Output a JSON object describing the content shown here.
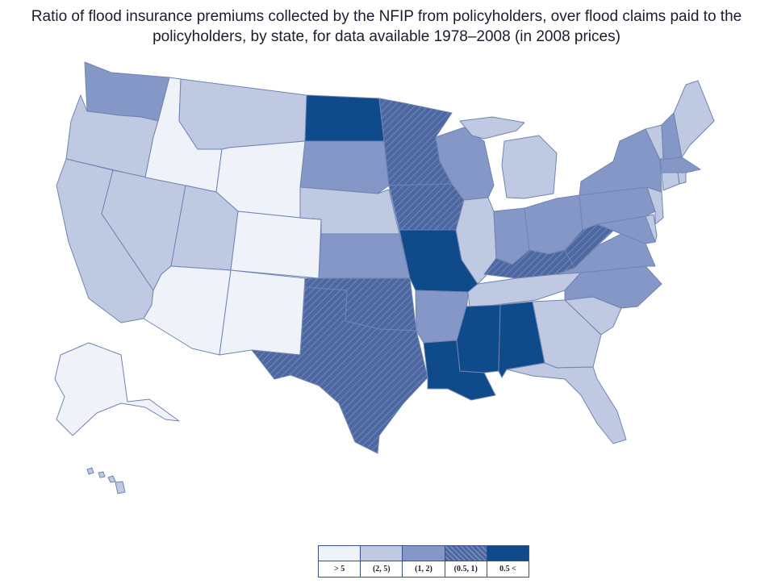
{
  "title": "Ratio of flood insurance premiums collected by the NFIP from policyholders, over flood claims paid to the policyholders, by state, for data available 1978–2008 (in 2008 prices)",
  "colors": {
    "gt5": "#eff2f8",
    "2to5": "#bfc9e2",
    "1to2": "#8497c6",
    "0_5to1": "#4d68a0",
    "0_5_or_less": "#0f4a8a",
    "border": "#6f84b3"
  },
  "legend": [
    {
      "key": "gt5",
      "label": "> 5",
      "pattern": "solid"
    },
    {
      "key": "2to5",
      "label": "(2, 5)",
      "pattern": "solid"
    },
    {
      "key": "1to2",
      "label": "(1, 2)",
      "pattern": "solid"
    },
    {
      "key": "0_5to1",
      "label": "(0.5, 1)",
      "pattern": "hatched"
    },
    {
      "key": "0_5_or_less",
      "label": "0.5 <",
      "pattern": "solid"
    }
  ],
  "states": {
    "WA": "1to2",
    "OR": "2to5",
    "CA": "2to5",
    "NV": "2to5",
    "ID": "gt5",
    "MT": "2to5",
    "WY": "gt5",
    "UT": "2to5",
    "AZ": "gt5",
    "CO": "gt5",
    "NM": "gt5",
    "ND": "0_5_or_less",
    "SD": "1to2",
    "NE": "2to5",
    "KS": "1to2",
    "OK": "0_5to1",
    "TX": "0_5to1",
    "MN": "0_5to1",
    "IA": "0_5to1",
    "MO": "0_5_or_less",
    "AR": "1to2",
    "LA": "0_5_or_less",
    "WI": "1to2",
    "IL": "2to5",
    "MI": "2to5",
    "IN": "1to2",
    "OH": "1to2",
    "KY": "0_5to1",
    "TN": "2to5",
    "MS": "0_5_or_less",
    "AL": "0_5_or_less",
    "GA": "2to5",
    "FL": "2to5",
    "SC": "2to5",
    "NC": "1to2",
    "VA": "1to2",
    "WV": "0_5to1",
    "PA": "1to2",
    "NY": "1to2",
    "VT": "2to5",
    "NH": "1to2",
    "ME": "2to5",
    "MA": "1to2",
    "CT": "2to5",
    "RI": "2to5",
    "NJ": "2to5",
    "DE": "2to5",
    "MD": "1to2",
    "AK": "gt5",
    "HI": "2to5"
  }
}
